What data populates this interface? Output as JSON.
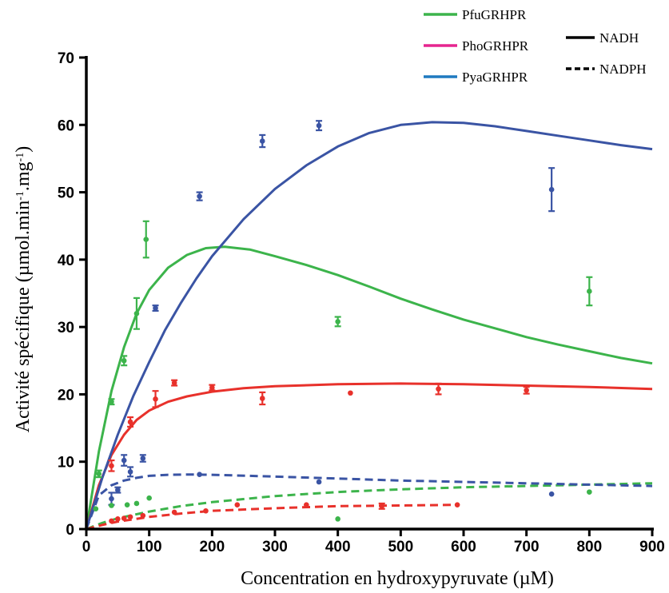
{
  "chart_data": {
    "type": "scatter",
    "xlabel": "Concentration en hydroxypyruvate (µM)",
    "ylabel_parts": [
      "Activité spécifique (µmol.min",
      "-1",
      ".mg",
      "-1",
      ")"
    ],
    "xlim": [
      0,
      900
    ],
    "ylim": [
      0,
      70
    ],
    "xticks": [
      0,
      100,
      200,
      300,
      400,
      500,
      600,
      700,
      800,
      900
    ],
    "yticks": [
      0,
      10,
      20,
      30,
      40,
      50,
      60,
      70
    ],
    "grid": false,
    "legend": {
      "placement": "top-right",
      "enzymes": [
        {
          "name": "PfuGRHPR",
          "color": "#3cb44b"
        },
        {
          "name": "PhoGRHPR",
          "color": "#e6258f"
        },
        {
          "name": "PyaGRHPR",
          "color": "#1f7ac0"
        }
      ],
      "cofactors": [
        {
          "name": "NADH",
          "style": "solid"
        },
        {
          "name": "NADPH",
          "style": "dashed"
        }
      ]
    },
    "series": [
      {
        "enzyme": "PfuGRHPR",
        "cofactor": "NADH",
        "color": "#3cb44b",
        "points": [
          [
            20,
            8.2,
            0.5
          ],
          [
            40,
            18.9,
            0.4
          ],
          [
            60,
            25,
            0.7
          ],
          [
            80,
            32,
            2.3
          ],
          [
            95,
            43,
            2.7
          ],
          [
            400,
            30.8,
            0.7
          ],
          [
            800,
            35.3,
            2.1
          ]
        ],
        "curve": [
          [
            0,
            0
          ],
          [
            20,
            11.5
          ],
          [
            40,
            20.5
          ],
          [
            60,
            27
          ],
          [
            80,
            32
          ],
          [
            100,
            35.5
          ],
          [
            130,
            38.8
          ],
          [
            160,
            40.7
          ],
          [
            190,
            41.7
          ],
          [
            220,
            41.9
          ],
          [
            260,
            41.5
          ],
          [
            300,
            40.5
          ],
          [
            350,
            39.2
          ],
          [
            400,
            37.7
          ],
          [
            450,
            36
          ],
          [
            500,
            34.2
          ],
          [
            550,
            32.6
          ],
          [
            600,
            31.1
          ],
          [
            650,
            29.8
          ],
          [
            700,
            28.5
          ],
          [
            750,
            27.4
          ],
          [
            800,
            26.4
          ],
          [
            850,
            25.4
          ],
          [
            900,
            24.6
          ]
        ]
      },
      {
        "enzyme": "PhoGRHPR",
        "cofactor": "NADH",
        "color": "#e8312b",
        "points": [
          [
            40,
            9.4,
            0.8
          ],
          [
            70,
            15.9,
            0.7
          ],
          [
            110,
            19.3,
            1.2
          ],
          [
            140,
            21.7,
            0.4
          ],
          [
            200,
            21,
            0.4
          ],
          [
            280,
            19.4,
            0.9
          ],
          [
            420,
            20.2,
            0
          ],
          [
            560,
            20.8,
            0.8
          ],
          [
            700,
            20.6,
            0.5
          ]
        ],
        "curve": [
          [
            0,
            0
          ],
          [
            20,
            6.5
          ],
          [
            40,
            11
          ],
          [
            60,
            14
          ],
          [
            80,
            16.2
          ],
          [
            100,
            17.6
          ],
          [
            130,
            18.9
          ],
          [
            160,
            19.7
          ],
          [
            200,
            20.4
          ],
          [
            250,
            20.9
          ],
          [
            300,
            21.2
          ],
          [
            400,
            21.5
          ],
          [
            500,
            21.6
          ],
          [
            600,
            21.5
          ],
          [
            700,
            21.3
          ],
          [
            800,
            21.1
          ],
          [
            900,
            20.8
          ]
        ]
      },
      {
        "enzyme": "PyaGRHPR",
        "cofactor": "NADH",
        "color": "#3a54a4",
        "points": [
          [
            40,
            4.5,
            0.9
          ],
          [
            50,
            5.8,
            0.4
          ],
          [
            60,
            10.2,
            0.8
          ],
          [
            70,
            8.5,
            0.7
          ],
          [
            90,
            10.5,
            0.5
          ],
          [
            110,
            32.8,
            0.4
          ],
          [
            180,
            49.4,
            0.6
          ],
          [
            280,
            57.6,
            0.9
          ],
          [
            370,
            59.9,
            0.7
          ],
          [
            740,
            50.4,
            3.2
          ]
        ],
        "curve": [
          [
            0,
            0
          ],
          [
            25,
            7.5
          ],
          [
            50,
            14
          ],
          [
            75,
            19.8
          ],
          [
            100,
            24.8
          ],
          [
            125,
            29.5
          ],
          [
            150,
            33.5
          ],
          [
            175,
            37.2
          ],
          [
            200,
            40.5
          ],
          [
            250,
            46
          ],
          [
            300,
            50.5
          ],
          [
            350,
            54
          ],
          [
            400,
            56.8
          ],
          [
            450,
            58.8
          ],
          [
            500,
            60
          ],
          [
            550,
            60.4
          ],
          [
            600,
            60.3
          ],
          [
            650,
            59.8
          ],
          [
            700,
            59.1
          ],
          [
            750,
            58.4
          ],
          [
            800,
            57.7
          ],
          [
            850,
            57
          ],
          [
            900,
            56.4
          ]
        ]
      },
      {
        "enzyme": "PfuGRHPR",
        "cofactor": "NADPH",
        "color": "#3cb44b",
        "points": [
          [
            15,
            3,
            0
          ],
          [
            40,
            3.5,
            0
          ],
          [
            65,
            3.6,
            0
          ],
          [
            80,
            3.8,
            0
          ],
          [
            100,
            4.6,
            0
          ],
          [
            400,
            1.5,
            0
          ],
          [
            800,
            5.5,
            0
          ]
        ],
        "curve": [
          [
            0,
            0
          ],
          [
            25,
            0.9
          ],
          [
            50,
            1.6
          ],
          [
            100,
            2.6
          ],
          [
            150,
            3.4
          ],
          [
            200,
            4
          ],
          [
            300,
            4.9
          ],
          [
            400,
            5.5
          ],
          [
            500,
            5.9
          ],
          [
            600,
            6.2
          ],
          [
            700,
            6.4
          ],
          [
            800,
            6.6
          ],
          [
            900,
            6.8
          ]
        ]
      },
      {
        "enzyme": "PhoGRHPR",
        "cofactor": "NADPH",
        "color": "#e8312b",
        "points": [
          [
            40,
            1.2,
            0
          ],
          [
            50,
            1.5,
            0
          ],
          [
            60,
            1.6,
            0
          ],
          [
            70,
            1.8,
            0
          ],
          [
            90,
            2,
            0
          ],
          [
            140,
            2.5,
            0
          ],
          [
            190,
            2.7,
            0
          ],
          [
            240,
            3.6,
            0
          ],
          [
            350,
            3.6,
            0
          ],
          [
            470,
            3.4,
            0.4
          ],
          [
            590,
            3.6,
            0
          ]
        ],
        "curve": [
          [
            0,
            0
          ],
          [
            25,
            0.6
          ],
          [
            50,
            1.1
          ],
          [
            100,
            1.8
          ],
          [
            150,
            2.3
          ],
          [
            200,
            2.7
          ],
          [
            300,
            3.1
          ],
          [
            400,
            3.4
          ],
          [
            500,
            3.5
          ],
          [
            590,
            3.6
          ]
        ]
      },
      {
        "enzyme": "PyaGRHPR",
        "cofactor": "NADPH",
        "color": "#3a54a4",
        "points": [
          [
            180,
            8.1,
            0
          ],
          [
            370,
            7,
            0
          ],
          [
            740,
            5.2,
            0
          ]
        ],
        "curve": [
          [
            0,
            0
          ],
          [
            20,
            5
          ],
          [
            40,
            6.5
          ],
          [
            60,
            7.2
          ],
          [
            80,
            7.6
          ],
          [
            100,
            7.9
          ],
          [
            130,
            8.05
          ],
          [
            160,
            8.1
          ],
          [
            200,
            8.05
          ],
          [
            300,
            7.8
          ],
          [
            400,
            7.5
          ],
          [
            500,
            7.2
          ],
          [
            600,
            7
          ],
          [
            700,
            6.8
          ],
          [
            800,
            6.6
          ],
          [
            900,
            6.4
          ]
        ]
      }
    ]
  }
}
